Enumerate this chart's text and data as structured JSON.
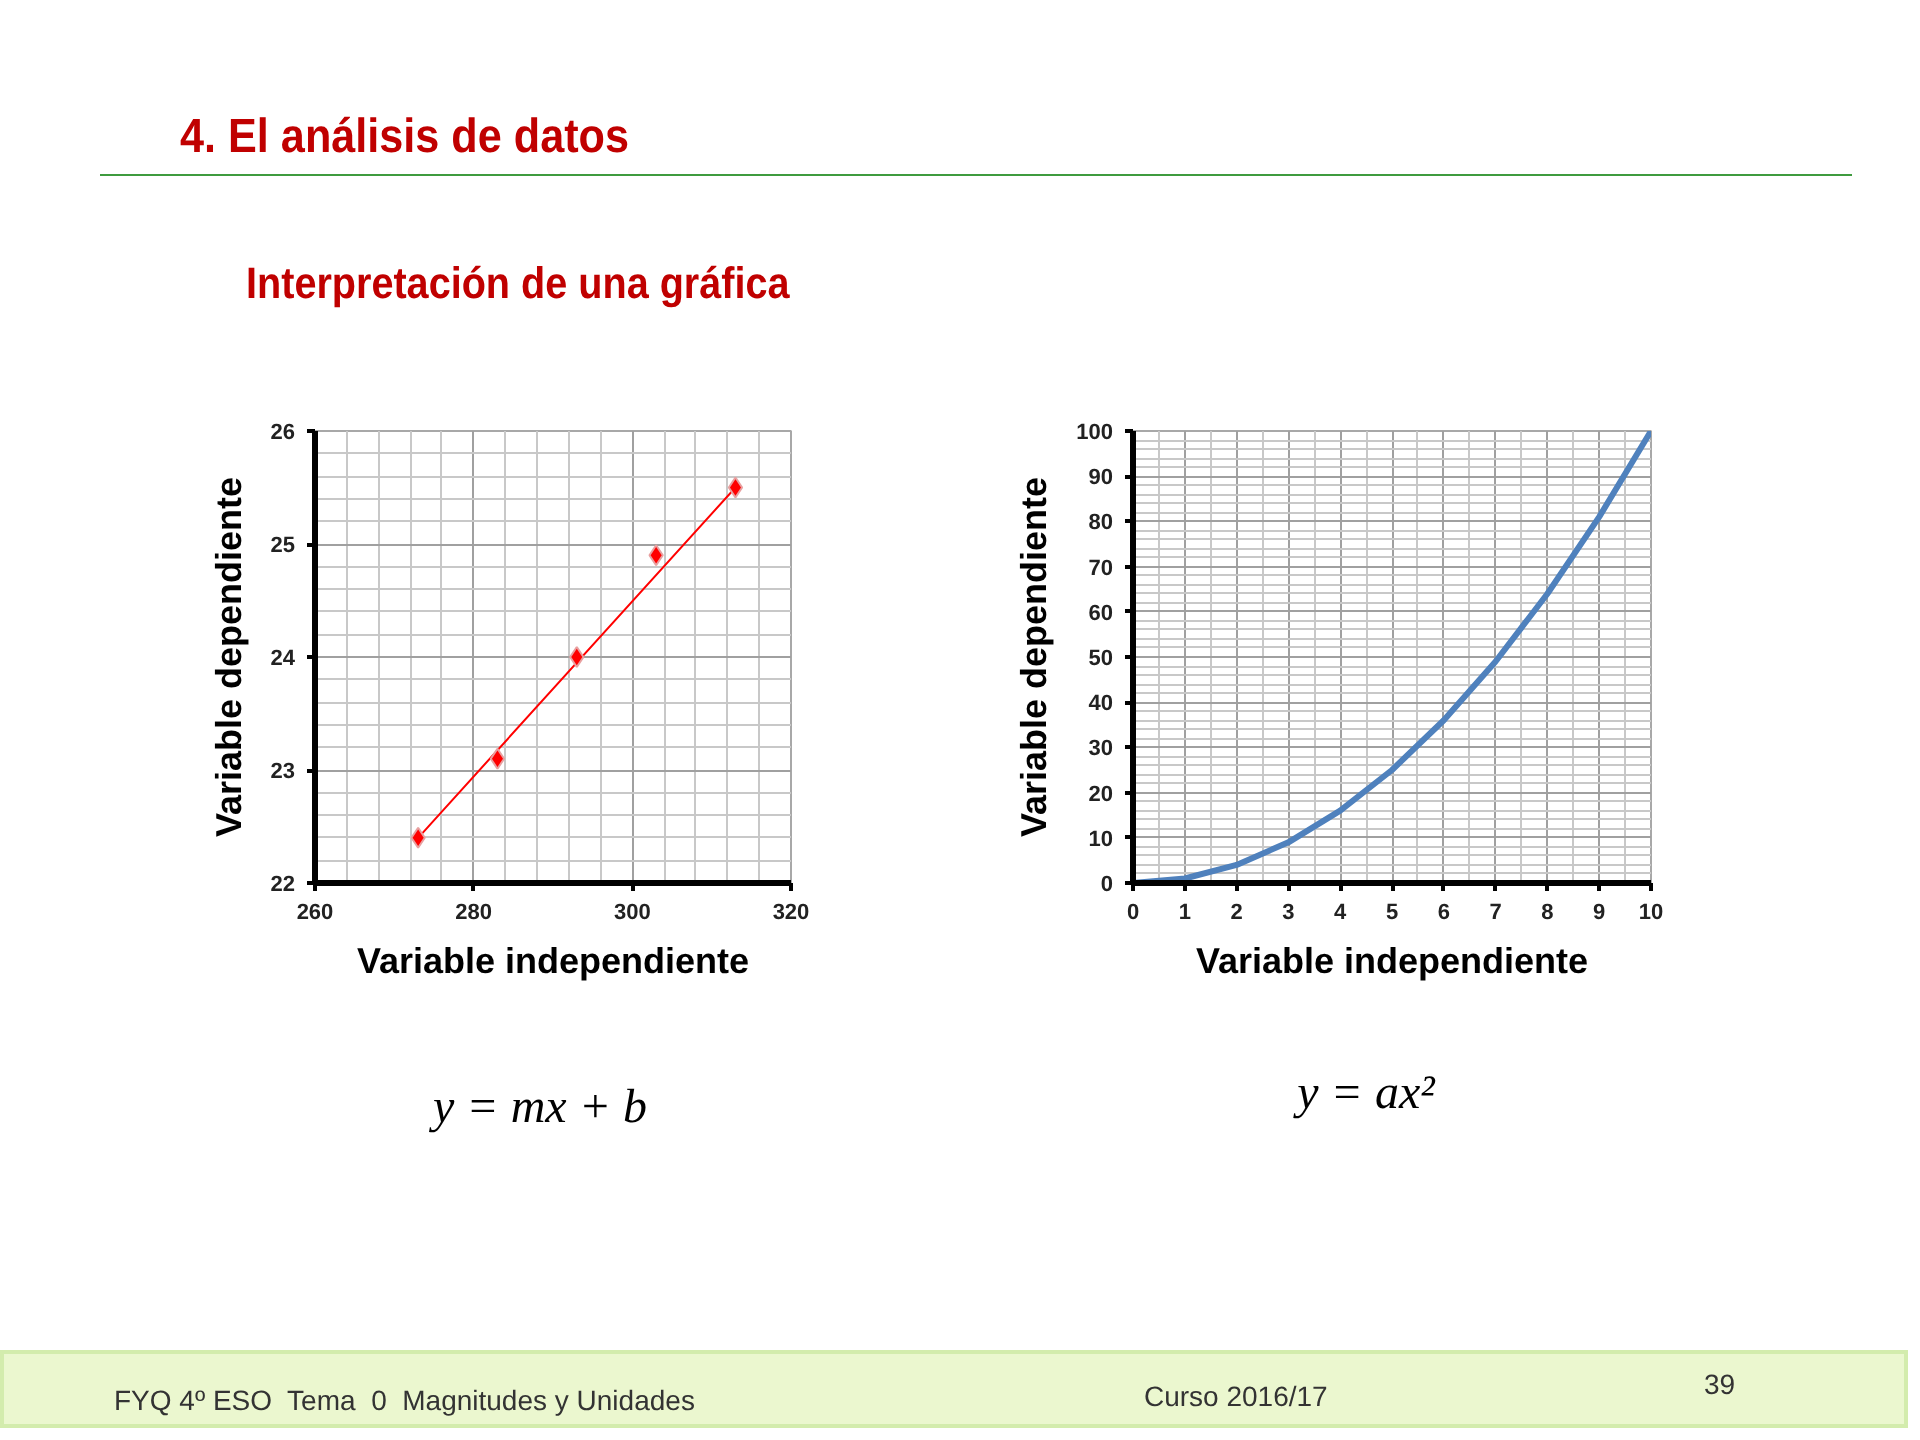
{
  "chart_data": [
    {
      "type": "scatter",
      "title": "4. El análisis de datos",
      "subtitle": "Interpretación de una gráfica",
      "xlabel": "Variable independiente",
      "ylabel": "Variable dependiente",
      "marker": "diamond",
      "series": [
        {
          "color": "#ff0000",
          "x": [
            273,
            283,
            293,
            303,
            313
          ],
          "values": [
            22.4,
            23.1,
            24.0,
            24.9,
            25.5
          ]
        },
        {
          "type": "line",
          "marker": "none",
          "color": "#ff0000",
          "x": [
            273,
            313
          ],
          "values": [
            22.4,
            25.5
          ]
        }
      ],
      "xlim": [
        260,
        320
      ],
      "xticks": [
        260,
        280,
        300,
        320
      ],
      "ylim": [
        22,
        26
      ],
      "yticks": [
        22,
        23,
        24,
        25,
        26
      ],
      "grid": true,
      "annotations": [
        "y = mx + b"
      ]
    },
    {
      "type": "line",
      "xlabel": "Variable independiente",
      "ylabel": "Variable dependiente",
      "x": [
        0,
        1,
        2,
        3,
        4,
        5,
        6,
        7,
        8,
        9,
        10
      ],
      "series": [
        {
          "color": "#4f81bd",
          "values": [
            0,
            1,
            4,
            9,
            16,
            25,
            36,
            49,
            64,
            81,
            100
          ]
        }
      ],
      "xlim": [
        0,
        10
      ],
      "xticks": [
        0,
        1,
        2,
        3,
        4,
        5,
        6,
        7,
        8,
        9,
        10
      ],
      "ylim": [
        0,
        100
      ],
      "yticks": [
        0,
        10,
        20,
        30,
        40,
        50,
        60,
        70,
        80,
        90,
        100
      ],
      "grid": true,
      "annotations": [
        "y = ax²",
        "FYQ 4º ESO  Tema  0  Magnitudes y Unidades",
        "Curso 2016/17",
        "39"
      ]
    }
  ]
}
